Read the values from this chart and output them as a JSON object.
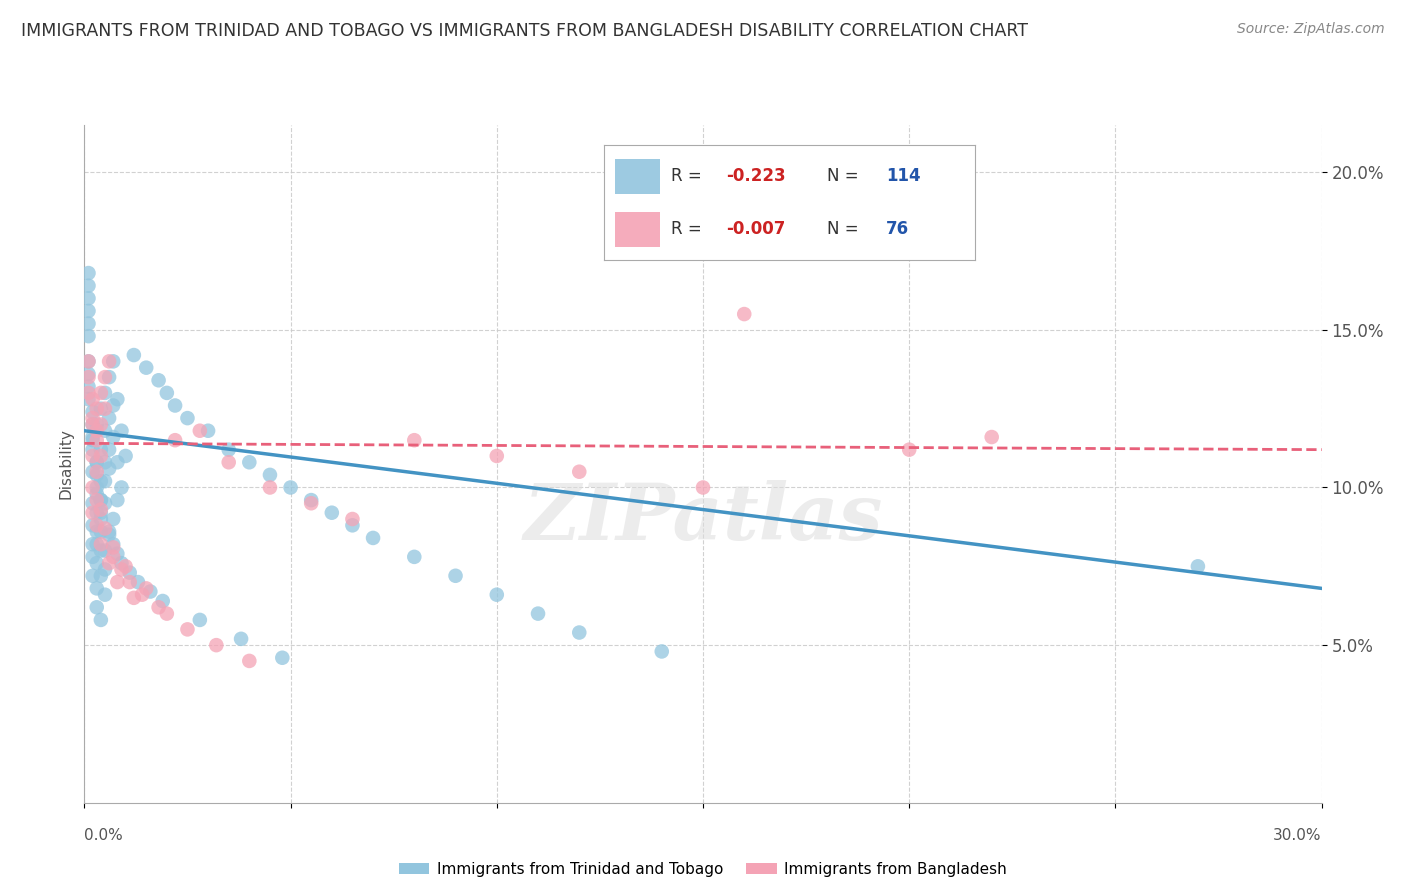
{
  "title": "IMMIGRANTS FROM TRINIDAD AND TOBAGO VS IMMIGRANTS FROM BANGLADESH DISABILITY CORRELATION CHART",
  "source": "Source: ZipAtlas.com",
  "ylabel": "Disability",
  "xlim": [
    0.0,
    0.3
  ],
  "ylim": [
    0.0,
    0.215
  ],
  "xticks": [
    0.0,
    0.05,
    0.1,
    0.15,
    0.2,
    0.25,
    0.3
  ],
  "yticks": [
    0.05,
    0.1,
    0.15,
    0.2
  ],
  "ytick_labels": [
    "5.0%",
    "10.0%",
    "15.0%",
    "20.0%"
  ],
  "legend1_R": "-0.223",
  "legend1_N": "114",
  "legend2_R": "-0.007",
  "legend2_N": "76",
  "color_blue": "#92c5de",
  "color_pink": "#f4a3b5",
  "watermark": "ZIPatlas",
  "blue_line_x": [
    0.0,
    0.3
  ],
  "blue_line_y": [
    0.118,
    0.068
  ],
  "pink_line_x": [
    0.0,
    0.3
  ],
  "pink_line_y": [
    0.114,
    0.112
  ],
  "blue_scatter_x": [
    0.002,
    0.003,
    0.004,
    0.005,
    0.006,
    0.007,
    0.008,
    0.009,
    0.01,
    0.002,
    0.003,
    0.004,
    0.005,
    0.006,
    0.007,
    0.008,
    0.009,
    0.002,
    0.003,
    0.004,
    0.005,
    0.006,
    0.007,
    0.008,
    0.002,
    0.003,
    0.004,
    0.005,
    0.006,
    0.007,
    0.002,
    0.003,
    0.004,
    0.005,
    0.006,
    0.002,
    0.003,
    0.004,
    0.005,
    0.002,
    0.003,
    0.004,
    0.005,
    0.003,
    0.004,
    0.005,
    0.003,
    0.004,
    0.012,
    0.015,
    0.018,
    0.02,
    0.022,
    0.025,
    0.03,
    0.035,
    0.04,
    0.045,
    0.05,
    0.055,
    0.06,
    0.065,
    0.07,
    0.08,
    0.09,
    0.1,
    0.11,
    0.12,
    0.14,
    0.27,
    0.001,
    0.001,
    0.001,
    0.001,
    0.001,
    0.001,
    0.001,
    0.001,
    0.001,
    0.001,
    0.002,
    0.002,
    0.002,
    0.002,
    0.003,
    0.003,
    0.003,
    0.004,
    0.004,
    0.006,
    0.007,
    0.008,
    0.009,
    0.011,
    0.013,
    0.016,
    0.019,
    0.028,
    0.038,
    0.048
  ],
  "blue_scatter_y": [
    0.115,
    0.12,
    0.125,
    0.13,
    0.135,
    0.14,
    0.128,
    0.118,
    0.11,
    0.105,
    0.108,
    0.112,
    0.118,
    0.122,
    0.126,
    0.108,
    0.1,
    0.095,
    0.098,
    0.102,
    0.108,
    0.112,
    0.116,
    0.096,
    0.088,
    0.092,
    0.096,
    0.102,
    0.106,
    0.09,
    0.082,
    0.086,
    0.09,
    0.095,
    0.086,
    0.078,
    0.082,
    0.086,
    0.08,
    0.072,
    0.076,
    0.08,
    0.074,
    0.068,
    0.072,
    0.066,
    0.062,
    0.058,
    0.142,
    0.138,
    0.134,
    0.13,
    0.126,
    0.122,
    0.118,
    0.112,
    0.108,
    0.104,
    0.1,
    0.096,
    0.092,
    0.088,
    0.084,
    0.078,
    0.072,
    0.066,
    0.06,
    0.054,
    0.048,
    0.075,
    0.148,
    0.152,
    0.156,
    0.16,
    0.164,
    0.168,
    0.14,
    0.136,
    0.132,
    0.128,
    0.124,
    0.12,
    0.116,
    0.112,
    0.108,
    0.104,
    0.1,
    0.096,
    0.092,
    0.085,
    0.082,
    0.079,
    0.076,
    0.073,
    0.07,
    0.067,
    0.064,
    0.058,
    0.052,
    0.046
  ],
  "pink_scatter_x": [
    0.002,
    0.003,
    0.004,
    0.005,
    0.006,
    0.002,
    0.003,
    0.004,
    0.005,
    0.002,
    0.003,
    0.004,
    0.002,
    0.003,
    0.003,
    0.004,
    0.004,
    0.005,
    0.006,
    0.007,
    0.008,
    0.01,
    0.012,
    0.015,
    0.018,
    0.022,
    0.028,
    0.035,
    0.045,
    0.055,
    0.065,
    0.08,
    0.1,
    0.12,
    0.15,
    0.16,
    0.2,
    0.22,
    0.001,
    0.001,
    0.001,
    0.002,
    0.002,
    0.003,
    0.007,
    0.009,
    0.011,
    0.014,
    0.02,
    0.025,
    0.032,
    0.04
  ],
  "pink_scatter_y": [
    0.12,
    0.125,
    0.13,
    0.135,
    0.14,
    0.11,
    0.115,
    0.12,
    0.125,
    0.1,
    0.105,
    0.11,
    0.092,
    0.096,
    0.088,
    0.093,
    0.082,
    0.087,
    0.076,
    0.081,
    0.07,
    0.075,
    0.065,
    0.068,
    0.062,
    0.115,
    0.118,
    0.108,
    0.1,
    0.095,
    0.09,
    0.115,
    0.11,
    0.105,
    0.1,
    0.155,
    0.112,
    0.116,
    0.13,
    0.135,
    0.14,
    0.122,
    0.128,
    0.118,
    0.078,
    0.074,
    0.07,
    0.066,
    0.06,
    0.055,
    0.05,
    0.045
  ]
}
